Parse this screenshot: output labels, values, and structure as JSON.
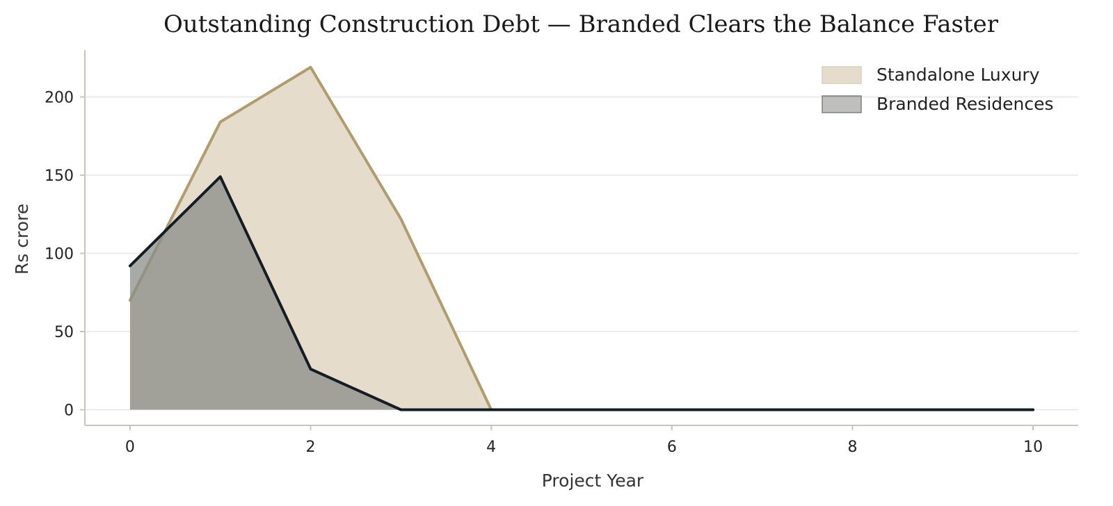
{
  "chart_data": {
    "type": "area",
    "title": "Outstanding Construction Debt — Branded Clears the Balance Faster",
    "xlabel": "Project Year",
    "ylabel": "Rs crore",
    "xlim": [
      -0.5,
      10.5
    ],
    "ylim": [
      -10,
      230
    ],
    "x_ticks": [
      0,
      2,
      4,
      6,
      8,
      10
    ],
    "y_ticks": [
      0,
      50,
      100,
      150,
      200
    ],
    "grid": "horizontal",
    "legend_position": "top-right",
    "x": [
      0,
      1,
      2,
      3,
      4,
      5,
      6,
      7,
      8,
      9,
      10
    ],
    "series": [
      {
        "name": "Standalone Luxury",
        "values": [
          70,
          184,
          219,
          122,
          0,
          0,
          0,
          0,
          0,
          0,
          0
        ],
        "line_color": "#b09c6e",
        "fill_color": "#e5dccb"
      },
      {
        "name": "Branded Residences",
        "values": [
          92,
          149,
          26,
          0,
          0,
          0,
          0,
          0,
          0,
          0,
          0
        ],
        "line_color": "#141c24",
        "fill_color": "#8a8d88"
      }
    ]
  }
}
